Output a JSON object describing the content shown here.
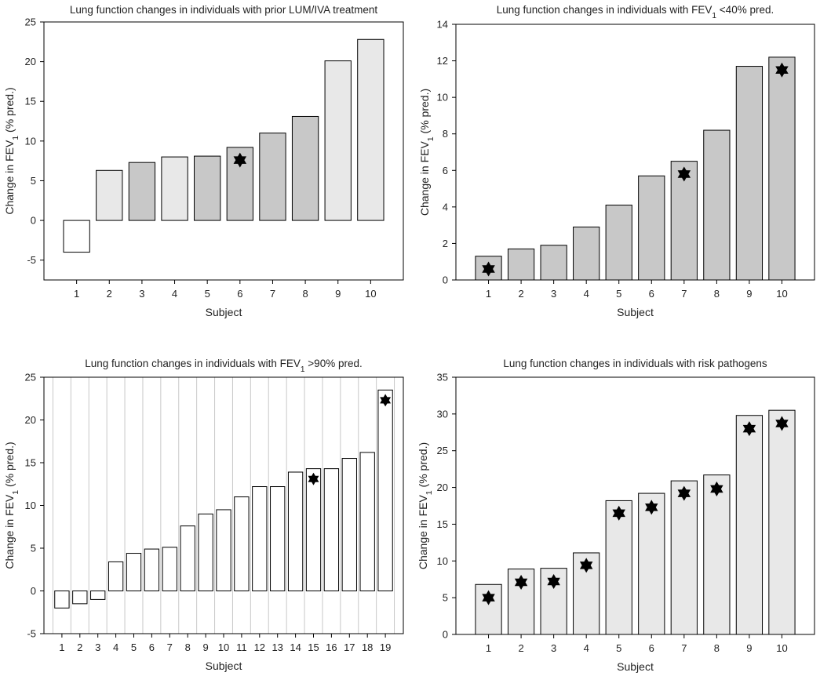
{
  "chart_data": [
    {
      "type": "bar",
      "title": "Lung function changes in individuals with prior LUM/IVA treatment",
      "xlabel": "Subject",
      "ylabel": "Change in FEV₁ (% pred.)",
      "ylabel_parts": {
        "prefix": "Change in FEV",
        "sub": "1",
        "suffix": " (% pred.)"
      },
      "categories": [
        "1",
        "2",
        "3",
        "4",
        "5",
        "6",
        "7",
        "8",
        "9",
        "10"
      ],
      "values": [
        -4,
        6.3,
        7.3,
        8.0,
        8.1,
        9.2,
        11.0,
        13.1,
        20.1,
        22.8
      ],
      "bar_colors": [
        "#ffffff",
        "#e8e8e8",
        "#c8c8c8",
        "#e8e8e8",
        "#c8c8c8",
        "#c8c8c8",
        "#c8c8c8",
        "#c8c8c8",
        "#e8e8e8",
        "#e8e8e8"
      ],
      "star_values": [
        null,
        null,
        null,
        null,
        null,
        7.6,
        null,
        null,
        null,
        null
      ],
      "ylim": [
        -7.5,
        25
      ],
      "yticks": [
        -5,
        0,
        5,
        10,
        15,
        20,
        25
      ],
      "grid": false
    },
    {
      "type": "bar",
      "title": "Lung function changes in individuals with FEV₁ <40% pred.",
      "title_parts": {
        "prefix": "Lung function changes in individuals with FEV",
        "sub": "1",
        "suffix": " <40% pred."
      },
      "xlabel": "Subject",
      "ylabel": "Change in FEV₁ (% pred.)",
      "ylabel_parts": {
        "prefix": "Change in FEV",
        "sub": "1",
        "suffix": " (% pred.)"
      },
      "categories": [
        "1",
        "2",
        "3",
        "4",
        "5",
        "6",
        "7",
        "8",
        "9",
        "10"
      ],
      "values": [
        1.3,
        1.7,
        1.9,
        2.9,
        4.1,
        5.7,
        6.5,
        8.2,
        11.7,
        12.2
      ],
      "bar_colors": [
        "#c8c8c8",
        "#c8c8c8",
        "#c8c8c8",
        "#c8c8c8",
        "#c8c8c8",
        "#c8c8c8",
        "#c8c8c8",
        "#c8c8c8",
        "#c8c8c8",
        "#c8c8c8"
      ],
      "star_values": [
        0.6,
        null,
        null,
        null,
        null,
        null,
        5.8,
        null,
        null,
        11.5
      ],
      "ylim": [
        0,
        14
      ],
      "yticks": [
        0,
        2,
        4,
        6,
        8,
        10,
        12,
        14
      ],
      "grid": false
    },
    {
      "type": "bar",
      "title": "Lung function changes in individuals with FEV₁ >90% pred.",
      "title_parts": {
        "prefix": "Lung function changes in individuals with FEV",
        "sub": "1",
        "suffix": " >90% pred."
      },
      "xlabel": "Subject",
      "ylabel": "Change in FEV₁ (% pred.)",
      "ylabel_parts": {
        "prefix": "Change in FEV",
        "sub": "1",
        "suffix": " (% pred.)"
      },
      "categories": [
        "1",
        "2",
        "3",
        "4",
        "5",
        "6",
        "7",
        "8",
        "9",
        "10",
        "11",
        "12",
        "13",
        "14",
        "15",
        "16",
        "17",
        "18",
        "19"
      ],
      "values": [
        -2.0,
        -1.5,
        -1.0,
        3.4,
        4.4,
        4.9,
        5.1,
        7.6,
        9.0,
        9.5,
        11.0,
        12.2,
        12.2,
        13.9,
        14.3,
        14.3,
        15.5,
        16.2,
        23.5
      ],
      "bar_colors": [
        "#ffffff",
        "#ffffff",
        "#ffffff",
        "#ffffff",
        "#ffffff",
        "#ffffff",
        "#ffffff",
        "#ffffff",
        "#ffffff",
        "#ffffff",
        "#ffffff",
        "#ffffff",
        "#ffffff",
        "#ffffff",
        "#ffffff",
        "#ffffff",
        "#ffffff",
        "#ffffff",
        "#ffffff"
      ],
      "star_values": [
        null,
        null,
        null,
        null,
        null,
        null,
        null,
        null,
        null,
        null,
        null,
        null,
        null,
        null,
        13.1,
        null,
        null,
        null,
        22.3
      ],
      "ylim": [
        -5,
        25
      ],
      "yticks": [
        -5,
        0,
        5,
        10,
        15,
        20,
        25
      ],
      "grid": true
    },
    {
      "type": "bar",
      "title": "Lung function changes in individuals with risk pathogens",
      "xlabel": "Subject",
      "ylabel": "Change in FEV₁ (% pred.)",
      "ylabel_parts": {
        "prefix": "Change in FEV",
        "sub": "1",
        "suffix": " (% pred.)"
      },
      "categories": [
        "1",
        "2",
        "3",
        "4",
        "5",
        "6",
        "7",
        "8",
        "9",
        "10"
      ],
      "values": [
        6.8,
        8.9,
        9.0,
        11.1,
        18.2,
        19.2,
        20.9,
        21.7,
        29.8,
        30.5
      ],
      "bar_colors": [
        "#e8e8e8",
        "#e8e8e8",
        "#e8e8e8",
        "#e8e8e8",
        "#e8e8e8",
        "#e8e8e8",
        "#e8e8e8",
        "#e8e8e8",
        "#e8e8e8",
        "#e8e8e8"
      ],
      "star_values": [
        5.0,
        7.1,
        7.2,
        9.4,
        16.5,
        17.3,
        19.2,
        19.8,
        28.0,
        28.7
      ],
      "ylim": [
        0,
        35
      ],
      "yticks": [
        0,
        5,
        10,
        15,
        20,
        25,
        30,
        35
      ],
      "grid": false
    }
  ]
}
